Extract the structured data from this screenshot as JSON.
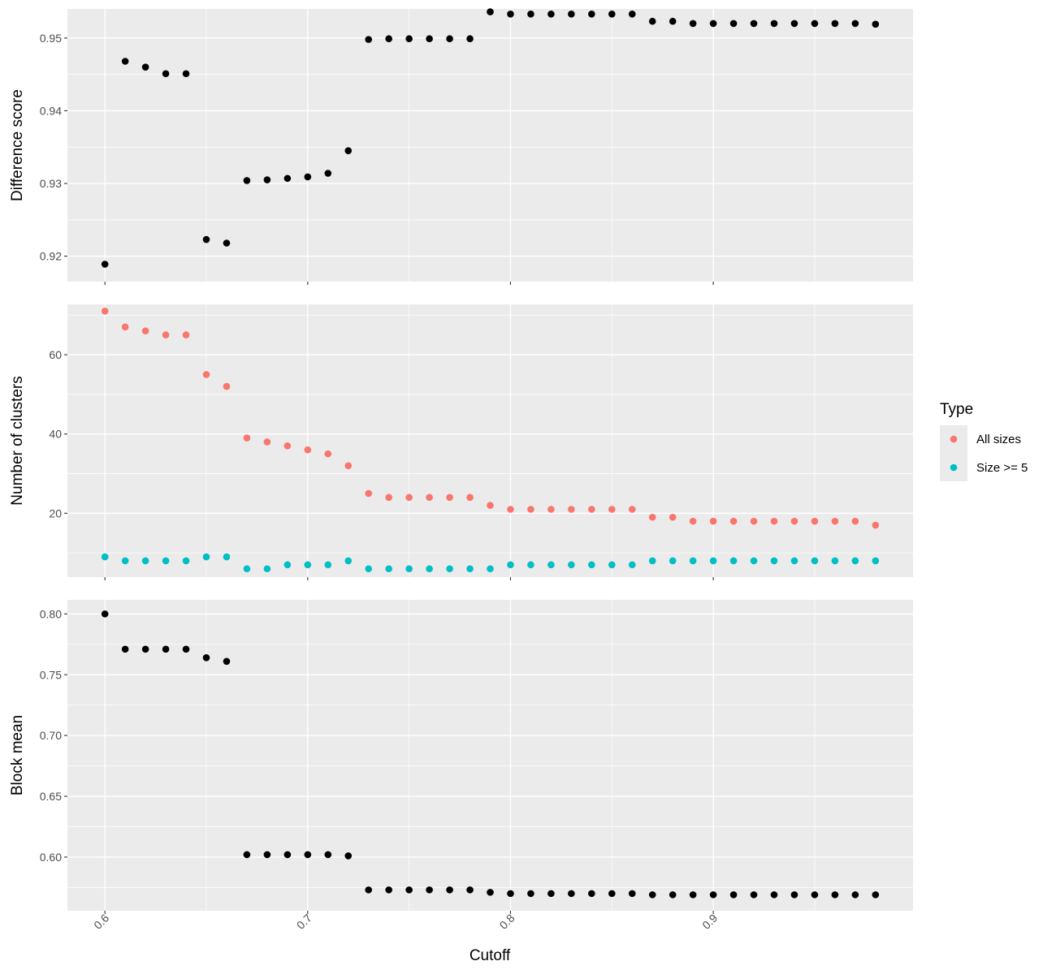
{
  "chart_data": {
    "type": "scatter",
    "xlabel": "Cutoff",
    "xlim": [
      0.5815,
      0.9985
    ],
    "x_ticks": [
      0.6,
      0.7,
      0.8,
      0.9
    ],
    "x_tick_labels": [
      "0.6",
      "0.7",
      "0.8",
      "0.9"
    ],
    "x": [
      0.6,
      0.61,
      0.62,
      0.63,
      0.64,
      0.65,
      0.66,
      0.67,
      0.68,
      0.69,
      0.7,
      0.71,
      0.72,
      0.73,
      0.74,
      0.75,
      0.76,
      0.77,
      0.78,
      0.79,
      0.8,
      0.81,
      0.82,
      0.83,
      0.84,
      0.85,
      0.86,
      0.87,
      0.88,
      0.89,
      0.9,
      0.91,
      0.92,
      0.93,
      0.94,
      0.95,
      0.96,
      0.97,
      0.98
    ],
    "grid": true,
    "legend": {
      "title": "Type",
      "placement": "right",
      "entries": [
        {
          "label": "All sizes",
          "color": "#F8766D"
        },
        {
          "label": "Size >= 5",
          "color": "#00BFC4"
        }
      ]
    },
    "panels": [
      {
        "ylabel": "Difference score",
        "ylim": [
          0.9165,
          0.954
        ],
        "y_ticks": [
          0.92,
          0.93,
          0.94,
          0.95
        ],
        "y_tick_labels": [
          "0.92",
          "0.93",
          "0.94",
          "0.95"
        ],
        "series": [
          {
            "color": "#000000",
            "values": [
              0.9189,
              0.9468,
              0.946,
              0.9451,
              0.9451,
              0.9223,
              0.9218,
              0.9304,
              0.9305,
              0.9307,
              0.9309,
              0.9314,
              0.9345,
              0.9498,
              0.9499,
              0.9499,
              0.9499,
              0.9499,
              0.9499,
              0.9536,
              0.9533,
              0.9533,
              0.9533,
              0.9533,
              0.9533,
              0.9533,
              0.9533,
              0.9523,
              0.9523,
              0.952,
              0.952,
              0.952,
              0.952,
              0.952,
              0.952,
              0.952,
              0.952,
              0.952,
              0.9519
            ]
          }
        ]
      },
      {
        "ylabel": "Number of clusters",
        "ylim": [
          3.9,
          72.7
        ],
        "y_ticks": [
          20,
          40,
          60
        ],
        "y_tick_labels": [
          "20",
          "40",
          "60"
        ],
        "series": [
          {
            "name": "All sizes",
            "color": "#F8766D",
            "values": [
              71,
              67,
              66,
              65,
              65,
              55,
              52,
              39,
              38,
              37,
              36,
              35,
              32,
              25,
              24,
              24,
              24,
              24,
              24,
              22,
              21,
              21,
              21,
              21,
              21,
              21,
              21,
              19,
              19,
              18,
              18,
              18,
              18,
              18,
              18,
              18,
              18,
              18,
              17
            ]
          },
          {
            "name": "Size >= 5",
            "color": "#00BFC4",
            "values": [
              9,
              8,
              8,
              8,
              8,
              9,
              9,
              6,
              6,
              7,
              7,
              7,
              8,
              6,
              6,
              6,
              6,
              6,
              6,
              6,
              7,
              7,
              7,
              7,
              7,
              7,
              7,
              8,
              8,
              8,
              8,
              8,
              8,
              8,
              8,
              8,
              8,
              8,
              8
            ]
          }
        ]
      },
      {
        "ylabel": "Block mean",
        "ylim": [
          0.5559,
          0.8116
        ],
        "y_ticks": [
          0.6,
          0.65,
          0.7,
          0.75,
          0.8
        ],
        "y_tick_labels": [
          "0.60",
          "0.65",
          "0.70",
          "0.75",
          "0.80"
        ],
        "series": [
          {
            "color": "#000000",
            "values": [
              0.8,
              0.771,
              0.771,
              0.771,
              0.771,
              0.764,
              0.761,
              0.602,
              0.602,
              0.602,
              0.602,
              0.602,
              0.601,
              0.573,
              0.573,
              0.573,
              0.573,
              0.573,
              0.573,
              0.571,
              0.57,
              0.57,
              0.57,
              0.57,
              0.57,
              0.57,
              0.57,
              0.569,
              0.569,
              0.569,
              0.569,
              0.569,
              0.569,
              0.569,
              0.569,
              0.569,
              0.569,
              0.569,
              0.569
            ]
          }
        ]
      }
    ]
  }
}
